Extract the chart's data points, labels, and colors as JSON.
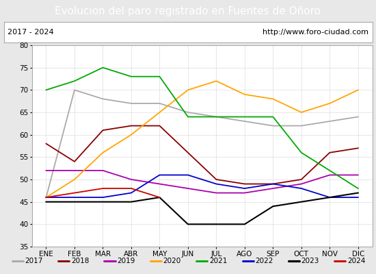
{
  "title": "Evolucion del paro registrado en Fuentes de Oñoro",
  "subtitle_left": "2017 - 2024",
  "subtitle_right": "http://www.foro-ciudad.com",
  "months": [
    "ENE",
    "FEB",
    "MAR",
    "ABR",
    "MAY",
    "JUN",
    "JUL",
    "AGO",
    "SEP",
    "OCT",
    "NOV",
    "DIC"
  ],
  "ylim": [
    35,
    80
  ],
  "yticks": [
    35,
    40,
    45,
    50,
    55,
    60,
    65,
    70,
    75,
    80
  ],
  "series": {
    "2017": {
      "values": [
        46,
        70,
        68,
        67,
        67,
        65,
        64,
        63,
        62,
        62,
        63,
        64
      ],
      "color": "#aaaaaa",
      "lw": 1.3
    },
    "2018": {
      "values": [
        58,
        54,
        61,
        62,
        62,
        56,
        50,
        49,
        49,
        50,
        56,
        57
      ],
      "color": "#8b0000",
      "lw": 1.3
    },
    "2019": {
      "values": [
        52,
        52,
        52,
        50,
        49,
        48,
        47,
        47,
        48,
        49,
        51,
        51
      ],
      "color": "#aa00aa",
      "lw": 1.3
    },
    "2020": {
      "values": [
        46,
        50,
        56,
        60,
        65,
        70,
        72,
        69,
        68,
        65,
        67,
        70
      ],
      "color": "#ffa500",
      "lw": 1.3
    },
    "2021": {
      "values": [
        70,
        72,
        75,
        73,
        73,
        64,
        64,
        64,
        64,
        56,
        52,
        48
      ],
      "color": "#00aa00",
      "lw": 1.3
    },
    "2022": {
      "values": [
        46,
        46,
        46,
        47,
        51,
        51,
        49,
        48,
        49,
        48,
        46,
        46
      ],
      "color": "#0000cc",
      "lw": 1.3
    },
    "2023": {
      "values": [
        45,
        45,
        45,
        45,
        46,
        40,
        40,
        40,
        44,
        45,
        46,
        47
      ],
      "color": "#000000",
      "lw": 1.5
    },
    "2024": {
      "values": [
        46,
        47,
        48,
        48,
        46,
        null,
        null,
        null,
        null,
        null,
        null,
        null
      ],
      "color": "#cc0000",
      "lw": 1.3
    }
  },
  "title_bg": "#4a86c8",
  "title_color": "#ffffff",
  "title_fontsize": 11,
  "subtitle_fontsize": 8,
  "axis_label_fontsize": 7.5,
  "legend_fontsize": 7.5,
  "fig_bg": "#e8e8e8",
  "plot_bg": "#ffffff",
  "border_color": "#aaaaaa"
}
